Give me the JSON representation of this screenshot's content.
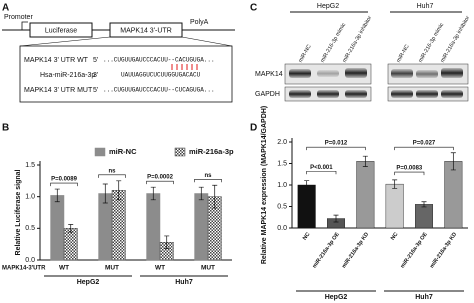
{
  "panel_labels": [
    "A",
    "B",
    "C",
    "D"
  ],
  "panel_a": {
    "promoter": "Promoter",
    "luciferase": "Luciferase",
    "utr": "MAPK14  3'-UTR",
    "polya": "PolyA",
    "rows": [
      {
        "label": "MAPK14 3' UTR WT",
        "end": "5'",
        "seq": "...CUGUUGAUCCCACUU--CACUGUGA..."
      },
      {
        "label": "Hsa-miR-216a-3p",
        "end": "3'",
        "seq": "UAUUAGGUCUCUUGGUGACACU"
      },
      {
        "label": "MAPK14 3' UTR MUT",
        "end": "5'",
        "seq": "...CUGUUGAUCCCACUU--CUCAGUGA..."
      }
    ]
  },
  "panel_c": {
    "groups": [
      "HepG2",
      "Huh7"
    ],
    "lanes": [
      "miR-NC",
      "miR-216-3p mimic",
      "miR-216a-3p inhibitor"
    ],
    "rows": [
      "MAPK14",
      "GAPDH"
    ]
  },
  "chart_data": [
    {
      "type": "bar",
      "ylabel": "Relative Luciferase signal",
      "xlabel": "MAPK14-3'UTR",
      "categories": [
        "WT",
        "MUT",
        "WT",
        "MUT"
      ],
      "groups": [
        "HepG2",
        "Huh7"
      ],
      "series": [
        {
          "name": "miR-NC",
          "color": "#8c8c8c",
          "values": [
            1.02,
            1.05,
            1.05,
            1.05
          ],
          "errors": [
            0.1,
            0.15,
            0.1,
            0.1
          ]
        },
        {
          "name": "miR-216a-3p",
          "color": "#444444",
          "pattern": "checker",
          "values": [
            0.5,
            1.1,
            0.28,
            1.0
          ],
          "errors": [
            0.06,
            0.15,
            0.1,
            0.18
          ]
        }
      ],
      "ylim": [
        0,
        1.5
      ],
      "yticks": [
        {
          "value": 0,
          "label": "0.0"
        },
        0.5,
        {
          "value": 1,
          "label": "1.0"
        },
        1.5
      ],
      "annotations": [
        "P=0.0089",
        "ns",
        "P=0.0002",
        "ns"
      ]
    },
    {
      "type": "bar",
      "ylabel": "Relative MAPK14 expression (MAPK14/GAPDH)",
      "categories": [
        "NC",
        "miR-216a-3p OE",
        "miR-216a-3p KD",
        "NC",
        "miR-216a-3p OE",
        "miR-216a-3p KD"
      ],
      "groups": [
        "HepG2",
        "Huh7"
      ],
      "values": [
        1.0,
        0.22,
        1.55,
        1.02,
        0.55,
        1.55
      ],
      "errors": [
        0.1,
        0.08,
        0.12,
        0.1,
        0.06,
        0.2
      ],
      "colors": [
        "#111111",
        "#555555",
        "#999999",
        "#cccccc",
        "#666666",
        "#999999"
      ],
      "ylim": [
        0,
        2
      ],
      "yticks": [
        {
          "value": 0,
          "label": "0.0"
        },
        0.5,
        {
          "value": 1,
          "label": "1.0"
        },
        1.5,
        {
          "value": 2,
          "label": "2.0"
        }
      ],
      "annotations": [
        "P=0.012",
        "P<0.001",
        "P=0.027",
        "P=0.0083"
      ]
    }
  ]
}
